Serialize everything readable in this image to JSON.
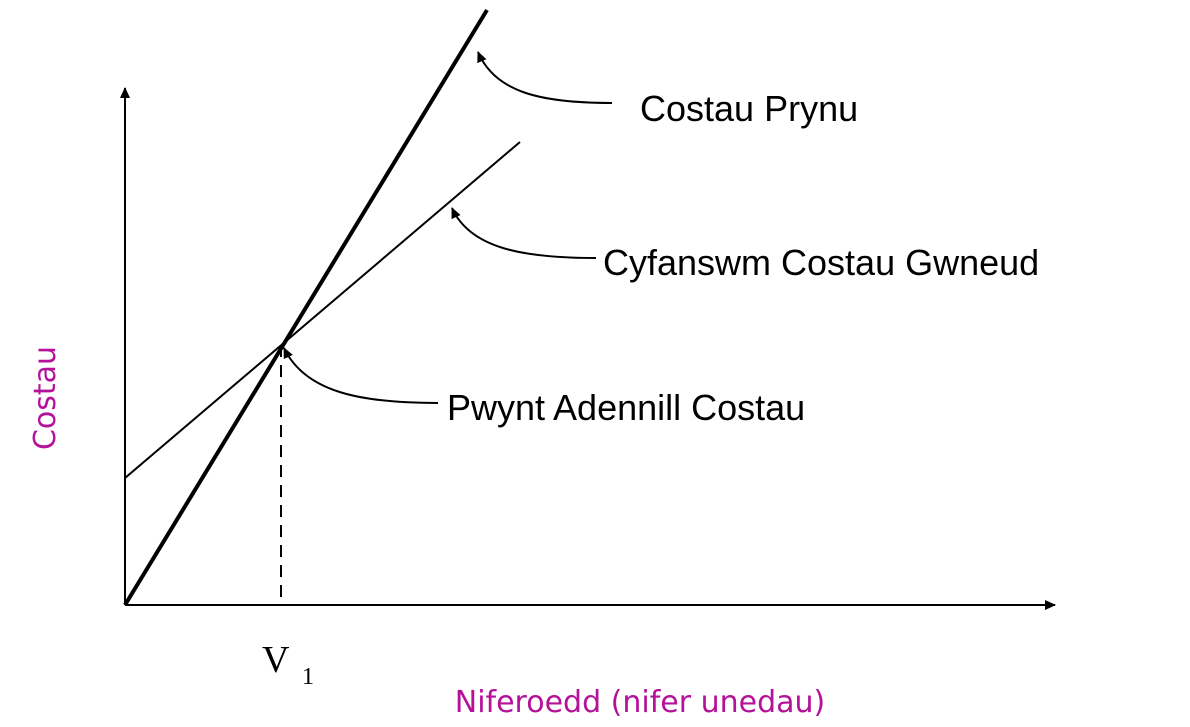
{
  "labels": {
    "purchase_cost": "Costau Prynu",
    "total_make_cost": "Cyfanswm Costau Gwneud",
    "break_even": "Pwynt Adennill Costau"
  },
  "axes": {
    "y_label": "Costau",
    "x_label": "Niferoedd (nifer unedau)"
  },
  "x_marker": {
    "letter": "V",
    "subscript": "1"
  }
}
